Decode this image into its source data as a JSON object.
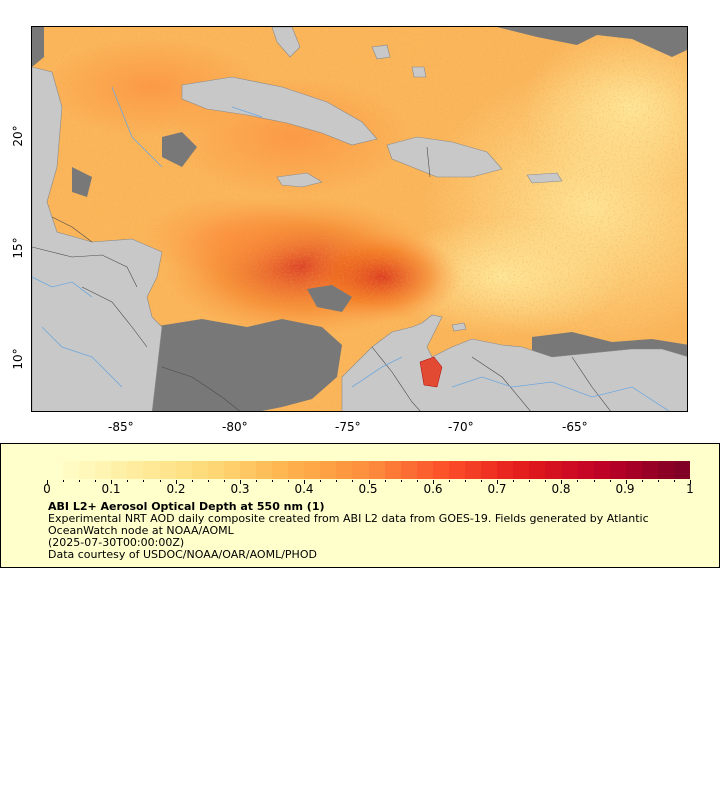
{
  "map": {
    "lon_ticks": [
      "-85°",
      "-80°",
      "-75°",
      "-70°",
      "-65°"
    ],
    "lat_ticks": [
      "20°",
      "15°",
      "10°"
    ],
    "colors": {
      "land": "#c8c8c8",
      "nodata": "#787878",
      "aod_low": "#ffffcc",
      "aod_high": "#800026",
      "rivers": "#6fa8dc",
      "borders": "#4a4a4a"
    }
  },
  "legend": {
    "colorbar_labels": [
      "0",
      "0.1",
      "0.2",
      "0.3",
      "0.4",
      "0.5",
      "0.6",
      "0.7",
      "0.8",
      "0.9",
      "1"
    ],
    "title": "ABI L2+ Aerosol Optical Depth at 550 nm (1)",
    "description": "Experimental NRT AOD daily composite created from ABI L2 data from GOES-19. Fields generated by Atlantic OceanWatch node at NOAA/AOML",
    "date": "(2025-07-30T00:00:00Z)",
    "credit": "Data courtesy of USDOC/NOAA/OAR/AOML/PHOD"
  }
}
